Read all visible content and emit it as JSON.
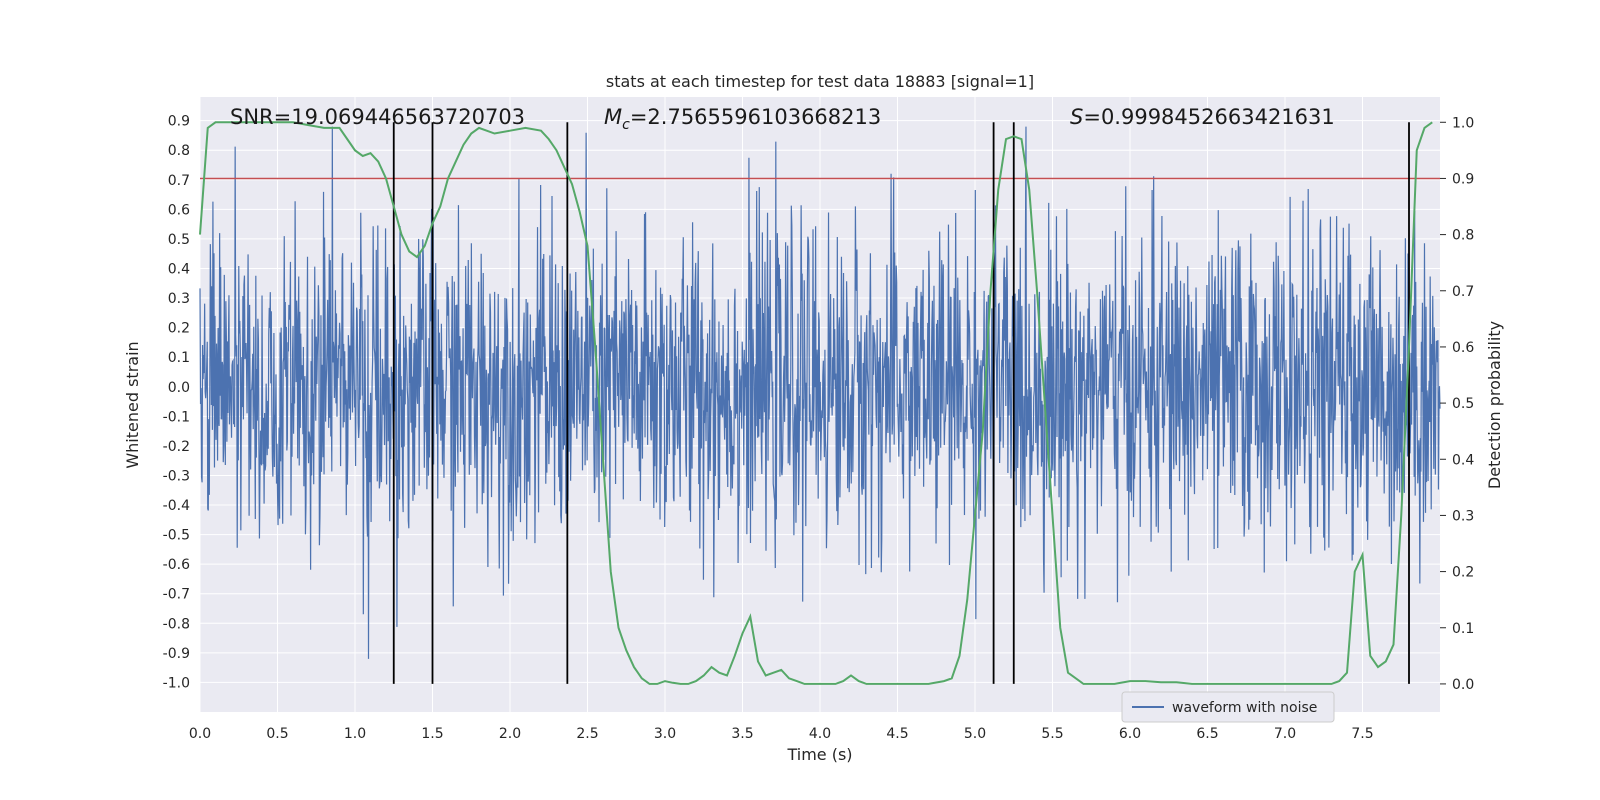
{
  "chart_data": {
    "type": "line",
    "title": "stats at each timestep for test data 18883 [signal=1]",
    "xlabel": "Time (s)",
    "ylabel_left": "Whitened strain",
    "ylabel_right": "Detection probability",
    "xlim": [
      0.0,
      8.0
    ],
    "ylim_left": [
      -1.1,
      0.98
    ],
    "ylim_right": [
      -0.05,
      1.045
    ],
    "x_ticks": [
      "0.0",
      "0.5",
      "1.0",
      "1.5",
      "2.0",
      "2.5",
      "3.0",
      "3.5",
      "4.0",
      "4.5",
      "5.0",
      "5.5",
      "6.0",
      "6.5",
      "7.0",
      "7.5"
    ],
    "y_left_ticks": [
      "0.9",
      "0.8",
      "0.7",
      "0.6",
      "0.5",
      "0.4",
      "0.3",
      "0.2",
      "0.1",
      "0.0",
      "-0.1",
      "-0.2",
      "-0.3",
      "-0.4",
      "-0.5",
      "-0.6",
      "-0.7",
      "-0.8",
      "-0.9",
      "-1.0"
    ],
    "y_right_ticks": [
      "1.0",
      "0.9",
      "0.8",
      "0.7",
      "0.6",
      "0.5",
      "0.4",
      "0.3",
      "0.2",
      "0.1",
      "0.0"
    ],
    "grid": true,
    "legend": {
      "position": "bottom-right",
      "entries": [
        "waveform with noise"
      ]
    },
    "annotations": {
      "snr": "SNR=19.069446563720703",
      "mc_symbol": "M",
      "mc_sub": "c",
      "mc_value": "=2.7565596103668213",
      "s_symbol": "S",
      "s_value": "=0.9998452663421631"
    },
    "threshold": {
      "axis": "right",
      "value": 0.9,
      "color": "#c44e52"
    },
    "vertical_lines": [
      1.25,
      1.5,
      2.37,
      5.12,
      5.25,
      7.8
    ],
    "series": [
      {
        "name": "waveform with noise",
        "axis": "left",
        "color": "#4c72b0",
        "kind": "noise",
        "duration": 8.0,
        "samples": 2400,
        "std": 0.26,
        "peak_max": 0.88,
        "peak_min": -1.0,
        "start": 0.0
      },
      {
        "name": "",
        "axis": "right",
        "color": "#55a868",
        "x": [
          0.0,
          0.05,
          0.1,
          0.2,
          0.3,
          0.4,
          0.5,
          0.6,
          0.7,
          0.8,
          0.9,
          0.95,
          1.0,
          1.05,
          1.1,
          1.15,
          1.2,
          1.25,
          1.3,
          1.35,
          1.4,
          1.45,
          1.5,
          1.55,
          1.6,
          1.65,
          1.7,
          1.75,
          1.8,
          1.85,
          1.9,
          2.0,
          2.1,
          2.2,
          2.25,
          2.3,
          2.35,
          2.4,
          2.45,
          2.5,
          2.55,
          2.6,
          2.65,
          2.7,
          2.75,
          2.8,
          2.85,
          2.9,
          2.95,
          3.0,
          3.05,
          3.1,
          3.15,
          3.2,
          3.25,
          3.3,
          3.35,
          3.4,
          3.45,
          3.5,
          3.55,
          3.6,
          3.65,
          3.7,
          3.75,
          3.8,
          3.85,
          3.9,
          4.0,
          4.1,
          4.15,
          4.2,
          4.25,
          4.3,
          4.4,
          4.5,
          4.6,
          4.7,
          4.8,
          4.85,
          4.9,
          4.95,
          5.0,
          5.05,
          5.1,
          5.15,
          5.2,
          5.25,
          5.3,
          5.35,
          5.4,
          5.45,
          5.5,
          5.55,
          5.6,
          5.7,
          5.8,
          5.9,
          6.0,
          6.1,
          6.2,
          6.3,
          6.4,
          6.5,
          6.6,
          6.7,
          6.8,
          6.9,
          7.0,
          7.1,
          7.2,
          7.3,
          7.35,
          7.4,
          7.45,
          7.5,
          7.55,
          7.6,
          7.65,
          7.7,
          7.75,
          7.8,
          7.85,
          7.9,
          7.95
        ],
        "y": [
          0.8,
          0.99,
          1.0,
          1.0,
          1.0,
          1.0,
          1.0,
          1.0,
          0.995,
          0.99,
          0.99,
          0.97,
          0.95,
          0.94,
          0.945,
          0.93,
          0.9,
          0.85,
          0.8,
          0.77,
          0.76,
          0.78,
          0.82,
          0.85,
          0.9,
          0.93,
          0.96,
          0.98,
          0.99,
          0.985,
          0.98,
          0.985,
          0.99,
          0.985,
          0.97,
          0.95,
          0.92,
          0.89,
          0.84,
          0.78,
          0.6,
          0.4,
          0.2,
          0.1,
          0.06,
          0.03,
          0.01,
          0.0,
          0.0,
          0.005,
          0.002,
          0.0,
          0.0,
          0.005,
          0.015,
          0.03,
          0.02,
          0.015,
          0.05,
          0.09,
          0.12,
          0.04,
          0.015,
          0.02,
          0.025,
          0.01,
          0.005,
          0.0,
          0.0,
          0.0,
          0.005,
          0.015,
          0.005,
          0.0,
          0.0,
          0.0,
          0.0,
          0.0,
          0.005,
          0.01,
          0.05,
          0.15,
          0.3,
          0.45,
          0.7,
          0.88,
          0.97,
          0.975,
          0.97,
          0.88,
          0.7,
          0.5,
          0.3,
          0.1,
          0.02,
          0.0,
          0.0,
          0.0,
          0.005,
          0.005,
          0.003,
          0.003,
          0.0,
          0.0,
          0.0,
          0.0,
          0.0,
          0.0,
          0.0,
          0.0,
          0.0,
          0.0,
          0.005,
          0.02,
          0.2,
          0.23,
          0.05,
          0.03,
          0.04,
          0.07,
          0.3,
          0.6,
          0.95,
          0.99,
          1.0
        ]
      }
    ]
  }
}
